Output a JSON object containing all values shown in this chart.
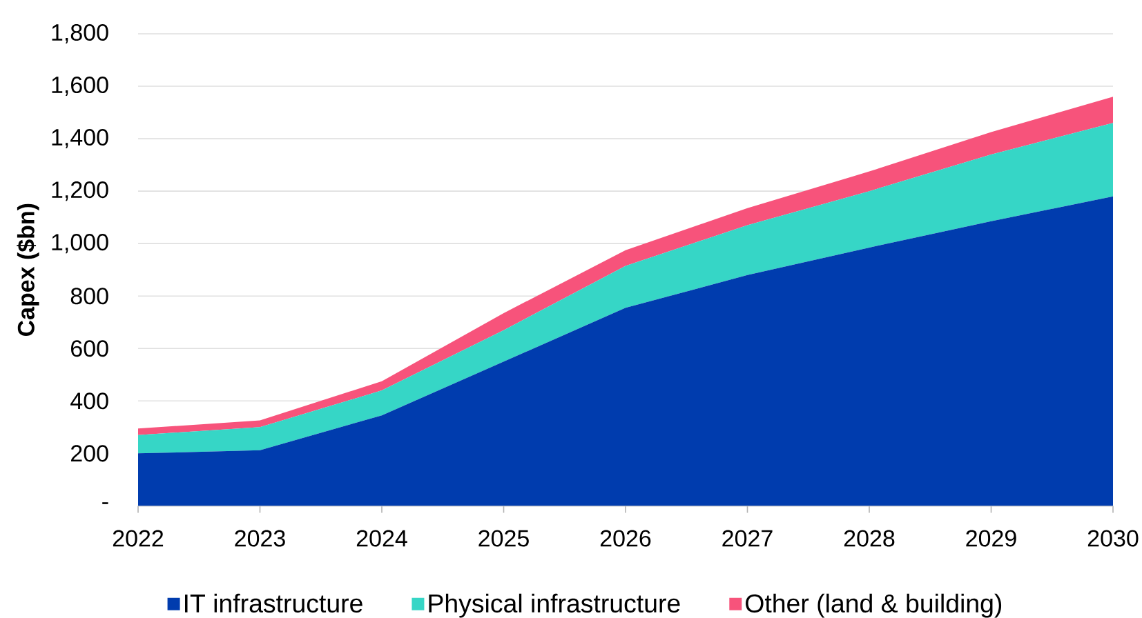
{
  "chart_data": {
    "type": "area",
    "stacked": true,
    "ylabel": "Capex ($bn)",
    "x": [
      2022,
      2023,
      2024,
      2025,
      2026,
      2027,
      2028,
      2029,
      2030
    ],
    "xlim": [
      2022,
      2030
    ],
    "xticks": [
      2022,
      2023,
      2024,
      2025,
      2026,
      2027,
      2028,
      2029,
      2030
    ],
    "ylim": [
      0,
      1800
    ],
    "yticks": [
      {
        "value": 0,
        "label": "-"
      },
      200,
      400,
      600,
      800,
      {
        "value": 1000,
        "label": "1,000"
      },
      {
        "value": 1200,
        "label": "1,200"
      },
      {
        "value": 1400,
        "label": "1,400"
      },
      {
        "value": 1600,
        "label": "1,600"
      },
      {
        "value": 1800,
        "label": "1,800"
      }
    ],
    "series": [
      {
        "name": "IT infrastructure",
        "color": "#003cae",
        "values": [
          200,
          212,
          345,
          550,
          755,
          880,
          985,
          1085,
          1180
        ]
      },
      {
        "name": "Physical infrastructure",
        "color": "#36d6c6",
        "values": [
          70,
          88,
          95,
          120,
          160,
          190,
          215,
          255,
          280
        ]
      },
      {
        "name": "Other (land & building)",
        "color": "#f7537b",
        "values": [
          25,
          26,
          35,
          65,
          60,
          65,
          75,
          85,
          100
        ]
      }
    ],
    "grid": "y",
    "legend": "bottom"
  }
}
